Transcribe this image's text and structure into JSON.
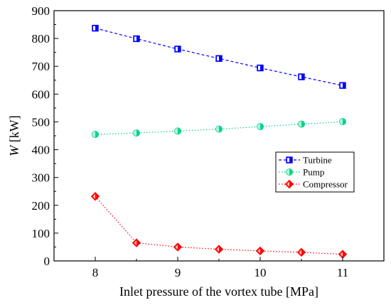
{
  "chart_data": {
    "type": "line",
    "xlabel": "Inlet pressure of the vortex tube [MPa]",
    "ylabel_italic": "W",
    "ylabel_rest": " [kW]",
    "xlim": [
      7.5,
      11.5
    ],
    "ylim": [
      0,
      900
    ],
    "xticks": [
      8,
      9,
      10,
      11
    ],
    "yticks": [
      0,
      100,
      200,
      300,
      400,
      500,
      600,
      700,
      800,
      900
    ],
    "grid": false,
    "legend_position": "right",
    "x": [
      8,
      8.5,
      9,
      9.5,
      10,
      10.5,
      11
    ],
    "series": [
      {
        "name": "Turbine",
        "values": [
          837,
          799,
          762,
          728,
          694,
          662,
          631
        ],
        "color": "#0000ff",
        "marker": "square",
        "dash": "dashed"
      },
      {
        "name": "Pump",
        "values": [
          455,
          460,
          467,
          474,
          483,
          492,
          501
        ],
        "color": "#00d68a",
        "marker": "circle",
        "dash": "dotted"
      },
      {
        "name": "Compressor",
        "values": [
          232,
          65,
          50,
          42,
          36,
          31,
          24
        ],
        "color": "#ff0000",
        "marker": "diamond",
        "dash": "dotted"
      }
    ]
  }
}
